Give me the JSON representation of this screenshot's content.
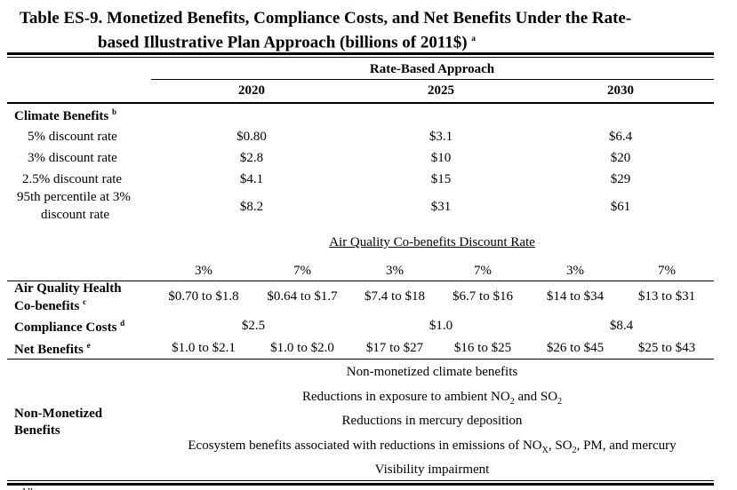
{
  "title": {
    "line1": "Table ES-9.   Monetized Benefits, Compliance Costs, and Net Benefits Under the Rate-",
    "line2": "based Illustrative Plan Approach (billions of 2011$)",
    "note_mark": "a"
  },
  "header": {
    "group": "Rate-Based Approach",
    "years": [
      "2020",
      "2025",
      "2030"
    ]
  },
  "climate": {
    "label": "Climate Benefits",
    "note_mark": "b",
    "rows": [
      {
        "label": "5% discount rate",
        "values": [
          "$0.80",
          "$3.1",
          "$6.4"
        ]
      },
      {
        "label": "3% discount rate",
        "values": [
          "$2.8",
          "$10",
          "$20"
        ]
      },
      {
        "label": "2.5% discount rate",
        "values": [
          "$4.1",
          "$15",
          "$29"
        ]
      },
      {
        "label_line1": "95th percentile at 3%",
        "label_line2": "discount rate",
        "values": [
          "$8.2",
          "$31",
          "$61"
        ]
      }
    ]
  },
  "air_quality": {
    "subheader": "Air Quality Co-benefits Discount Rate",
    "rates": [
      "3%",
      "7%",
      "3%",
      "7%",
      "3%",
      "7%"
    ],
    "health": {
      "label_line1": "Air Quality Health",
      "label_line2": "Co-benefits",
      "note_mark": "c",
      "values": [
        "$0.70 to $1.8",
        "$0.64 to $1.7",
        "$7.4 to $18",
        "$6.7 to $16",
        "$14 to $34",
        "$13 to $31"
      ]
    }
  },
  "compliance": {
    "label": "Compliance Costs",
    "note_mark": "d",
    "values": [
      "$2.5",
      "$1.0",
      "$8.4"
    ]
  },
  "net": {
    "label": "Net Benefits",
    "note_mark": "e",
    "values": [
      "$1.0 to $2.1",
      "$1.0 to $2.0",
      "$17 to $27",
      "$16 to $25",
      "$26 to $45",
      "$25 to $43"
    ]
  },
  "non_monetized": {
    "label_line1": "Non-Monetized",
    "label_line2": "Benefits",
    "items": [
      "Non-monetized climate benefits",
      "Reductions in exposure to ambient NO",
      "Reductions in mercury deposition",
      "Ecosystem benefits associated with reductions in emissions of NO",
      "Visibility impairment"
    ],
    "item2_parts": {
      "a": "Reductions in exposure to ambient NO",
      "sub1": "2",
      "b": " and SO",
      "sub2": "2"
    },
    "item4_parts": {
      "a": "Ecosystem benefits associated with reductions in emissions of NO",
      "sub1": "X",
      "b": ", SO",
      "sub2": "2",
      "c": ", PM, and mercury"
    }
  },
  "footnote_partial": "a All ..."
}
